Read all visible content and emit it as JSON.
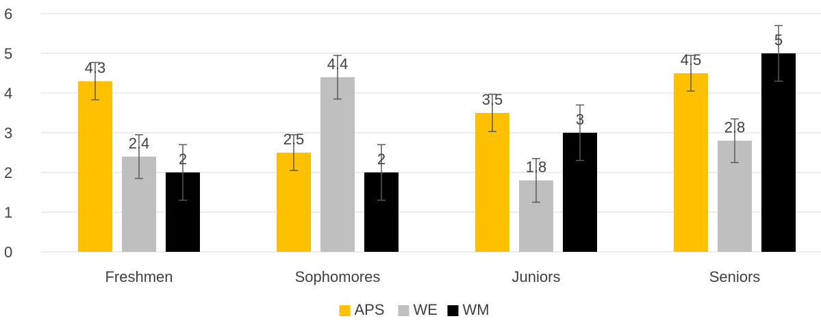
{
  "chart_data": {
    "type": "bar",
    "title": "",
    "xlabel": "",
    "ylabel": "",
    "categories": [
      "Freshmen",
      "Sophomores",
      "Juniors",
      "Seniors"
    ],
    "series": [
      {
        "name": "APS",
        "color": "#FFC000",
        "values": [
          4.3,
          2.5,
          3.5,
          4.5
        ],
        "error": [
          0.47,
          0.45,
          0.47,
          0.45
        ]
      },
      {
        "name": "WE",
        "color": "#BFBFBF",
        "values": [
          2.4,
          4.4,
          1.8,
          2.8
        ],
        "error": [
          0.55,
          0.55,
          0.55,
          0.55
        ]
      },
      {
        "name": "WM",
        "color": "#000000",
        "values": [
          2,
          2,
          3,
          5
        ],
        "error": [
          0.7,
          0.7,
          0.7,
          0.7
        ]
      }
    ],
    "ylim": [
      0,
      6
    ],
    "yticks": [
      0,
      1,
      2,
      3,
      4,
      5,
      6
    ],
    "grid": true,
    "legend": "bottom-center",
    "error_bar_color": "#595959"
  }
}
